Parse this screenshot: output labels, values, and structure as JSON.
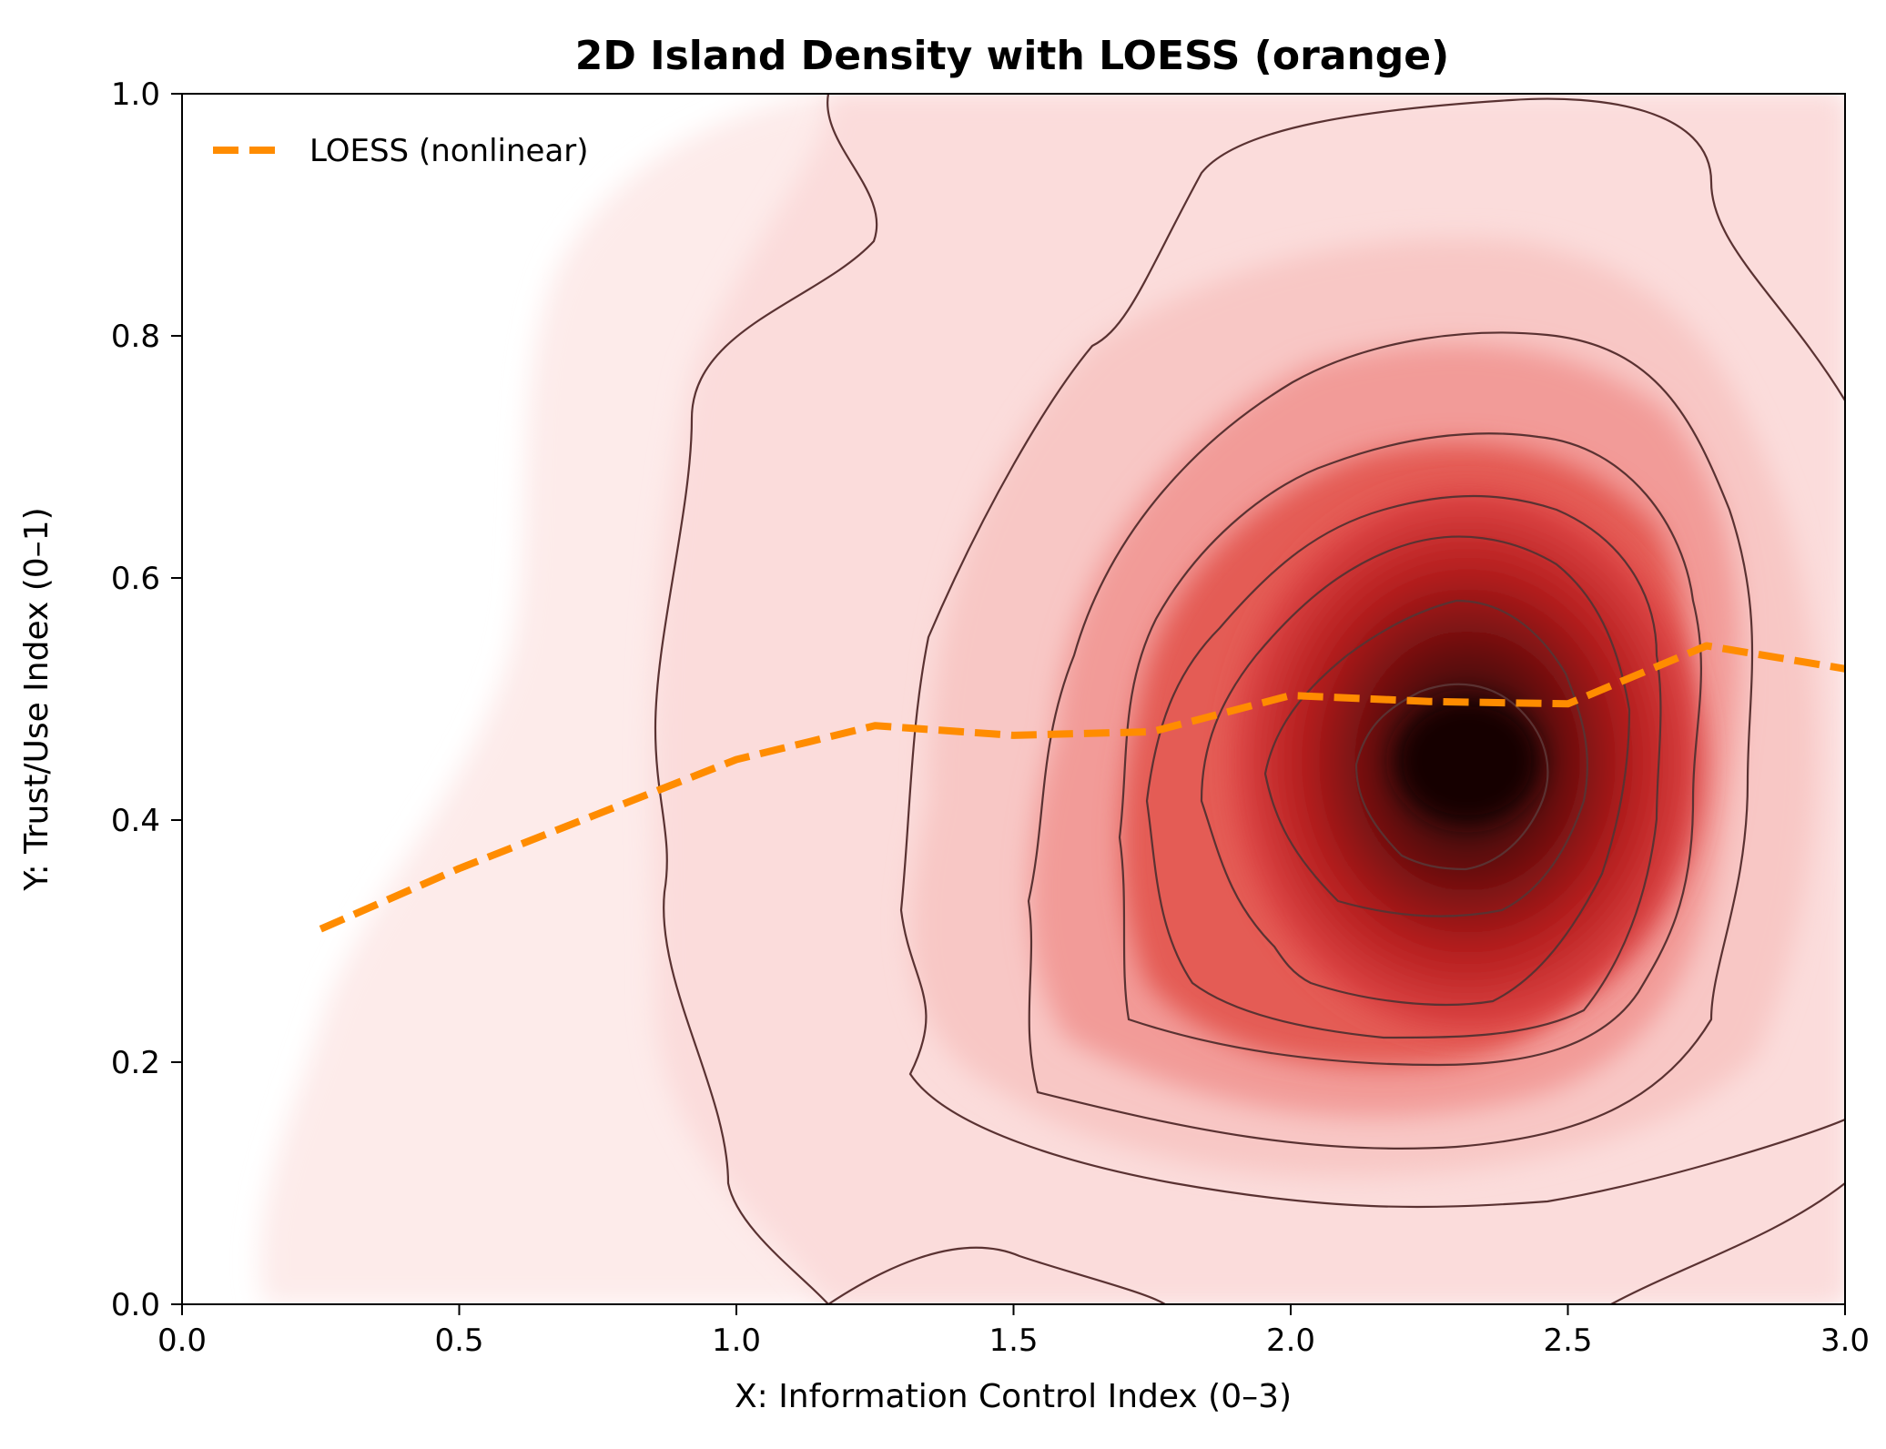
{
  "chart_data": {
    "type": "heatmap",
    "title": "2D Island Density with LOESS (orange)",
    "xlabel": "X: Information Control Index (0–3)",
    "ylabel": "Y: Trust/Use Index (0–1)",
    "xlim": [
      0,
      3
    ],
    "ylim": [
      0,
      1
    ],
    "xticks": [
      "0.0",
      "0.5",
      "1.0",
      "1.5",
      "2.0",
      "2.5",
      "3.0"
    ],
    "yticks": [
      "0.0",
      "0.2",
      "0.4",
      "0.6",
      "0.8",
      "1.0"
    ],
    "grid": false,
    "colormap": "Reds",
    "density_peak": {
      "x": 2.32,
      "y": 0.45
    },
    "contour_levels": 8,
    "series": [
      {
        "name": "LOESS (nonlinear)",
        "style": "dashed",
        "color": "#ff8c00",
        "x": [
          0.25,
          0.5,
          0.75,
          1.0,
          1.25,
          1.5,
          1.75,
          2.0,
          2.25,
          2.5,
          2.75,
          3.0
        ],
        "y": [
          0.31,
          0.36,
          0.405,
          0.45,
          0.478,
          0.47,
          0.473,
          0.503,
          0.498,
          0.496,
          0.544,
          0.525
        ]
      }
    ],
    "legend": {
      "position": "top-left",
      "entries": [
        "LOESS (nonlinear)"
      ]
    }
  }
}
